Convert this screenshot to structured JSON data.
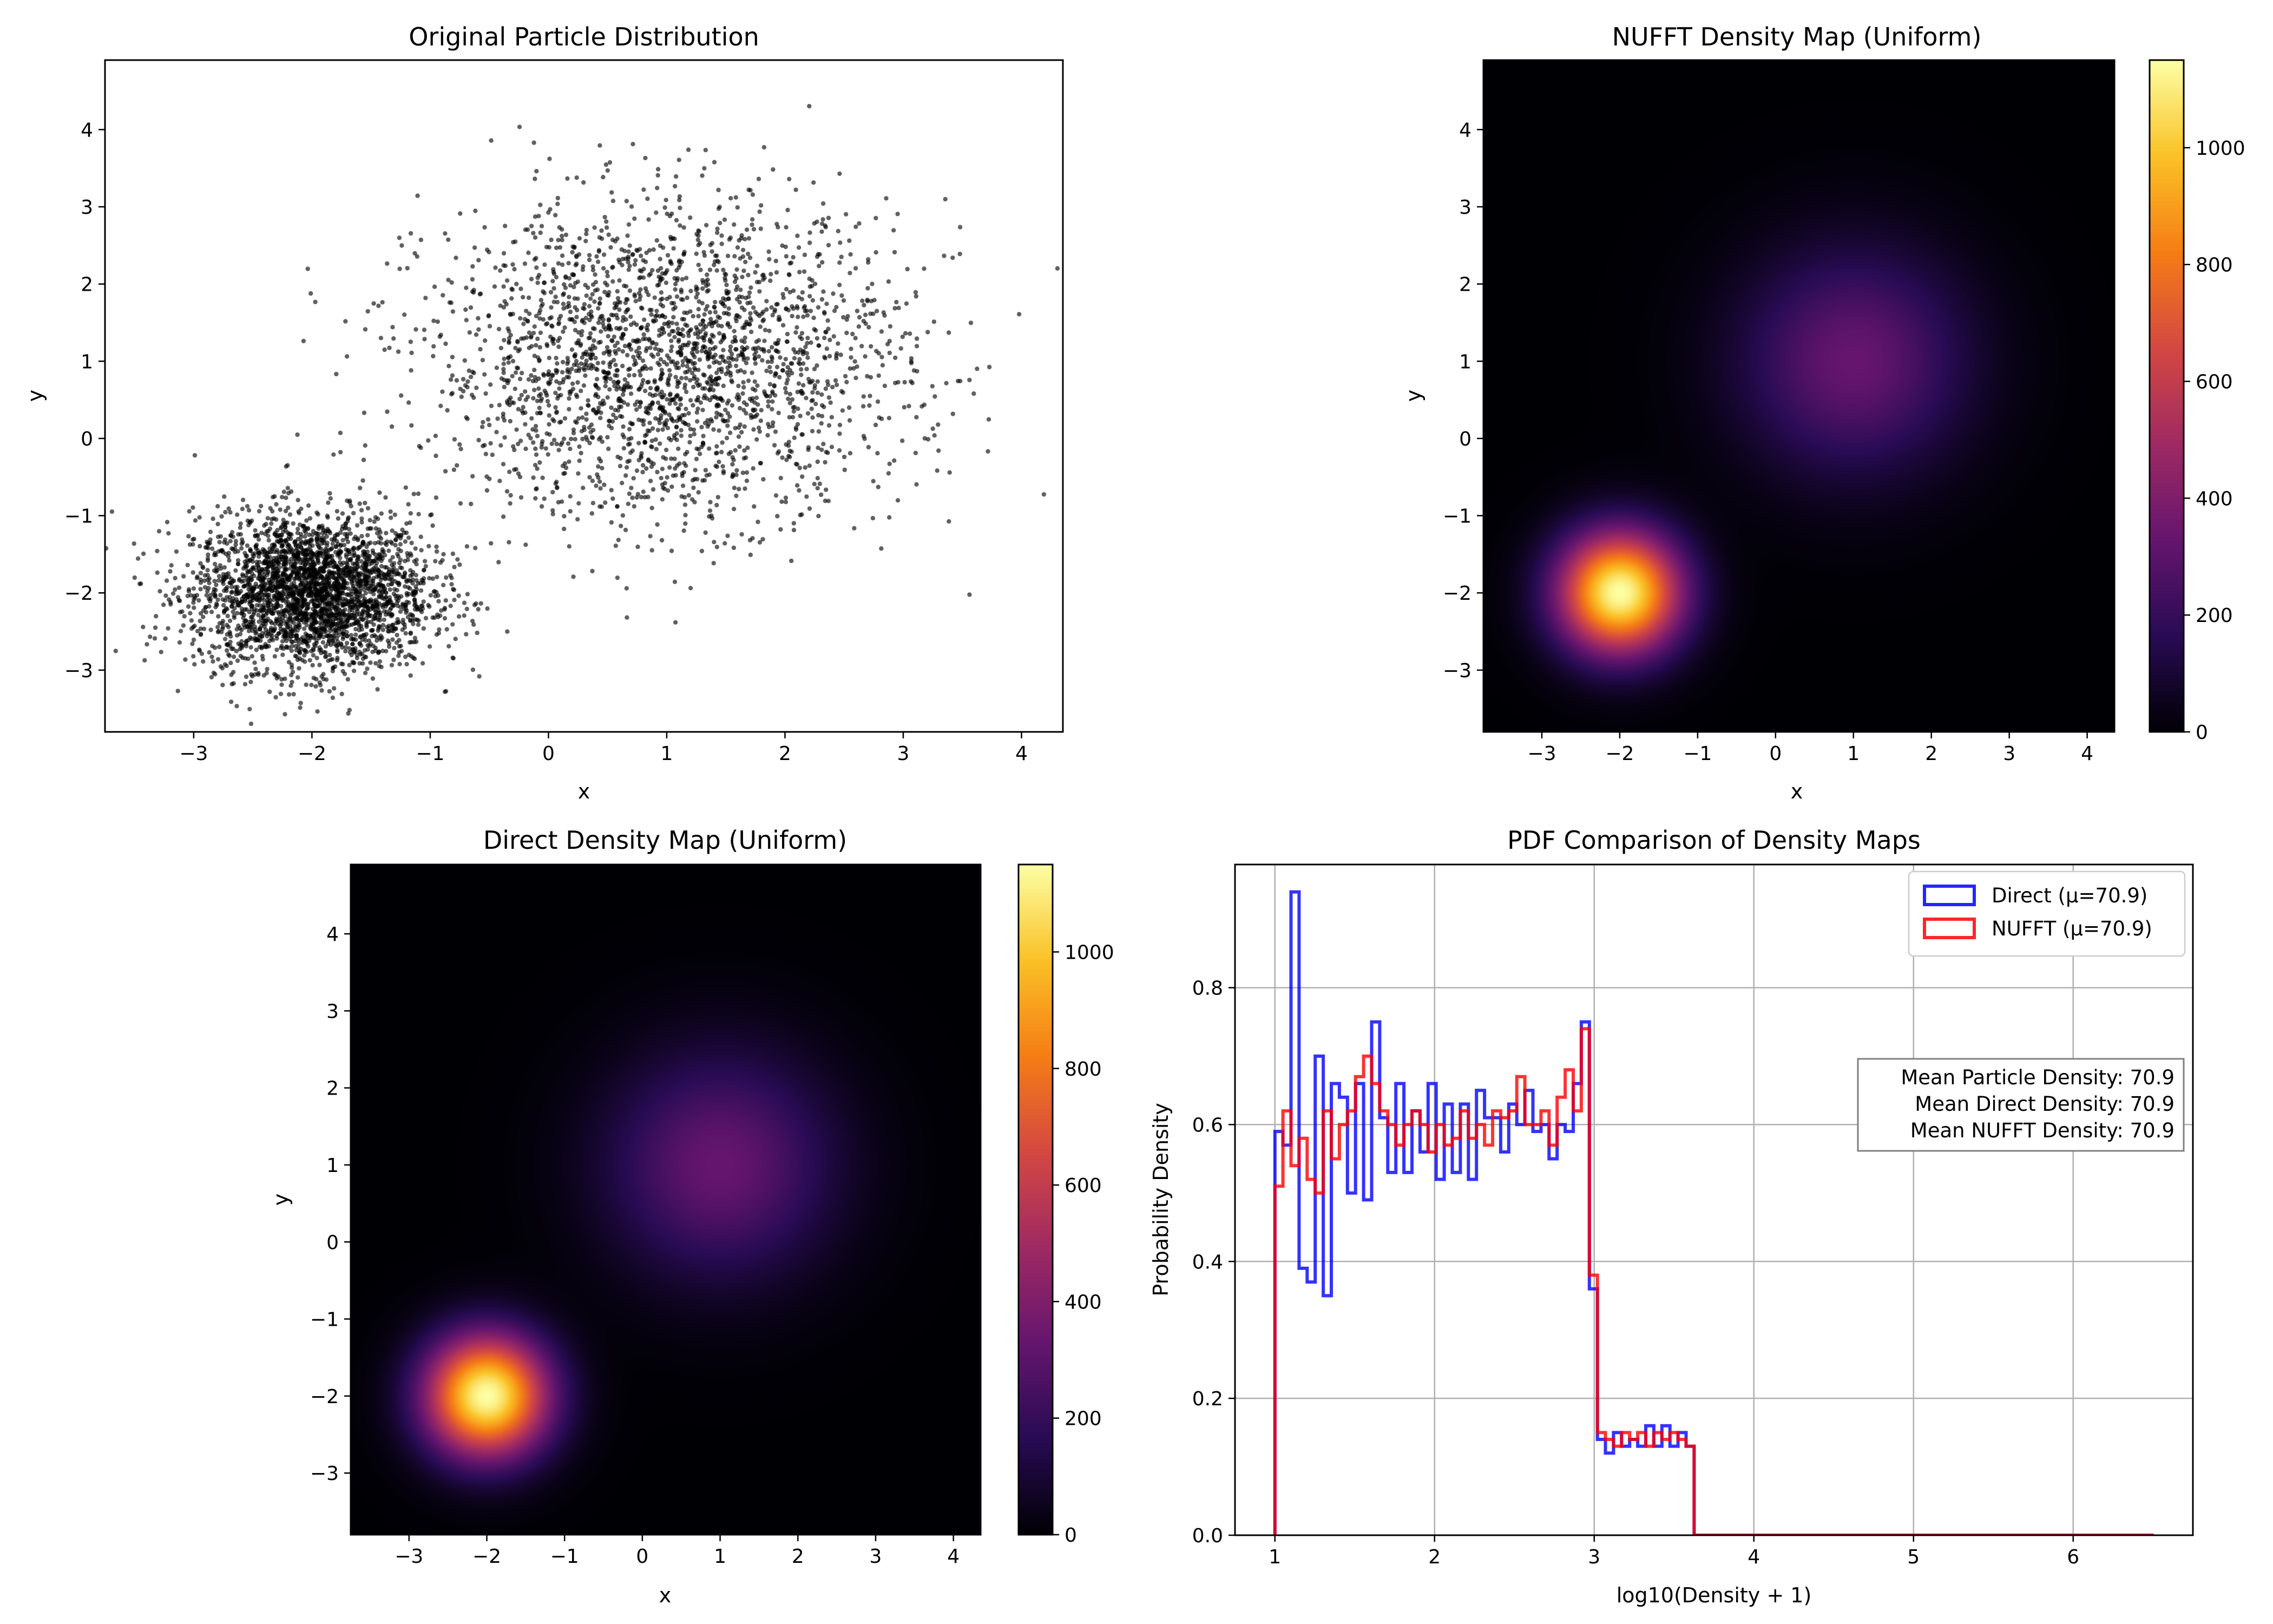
{
  "chart_data": [
    {
      "type": "scatter",
      "title": "Original Particle Distribution",
      "xlabel": "x",
      "ylabel": "y",
      "xlim": [
        -3.75,
        4.35
      ],
      "ylim": [
        -3.8,
        4.9
      ],
      "xticks": [
        -3,
        -2,
        -1,
        0,
        1,
        2,
        3,
        4
      ],
      "yticks": [
        -3,
        -2,
        -1,
        0,
        1,
        2,
        3,
        4
      ],
      "xtick_labels": [
        "−3",
        "−2",
        "−1",
        "0",
        "1",
        "2",
        "3",
        "4"
      ],
      "ytick_labels": [
        "−3",
        "−2",
        "−1",
        "0",
        "1",
        "2",
        "3",
        "4"
      ],
      "point_color": "#000000",
      "clusters": [
        {
          "center_x": -2.0,
          "center_y": -2.0,
          "std": 0.5,
          "count": 3000
        },
        {
          "center_x": 1.0,
          "center_y": 1.0,
          "std": 1.0,
          "count": 2500
        }
      ]
    },
    {
      "type": "heatmap",
      "title": "NUFFT Density Map (Uniform)",
      "xlabel": "x",
      "ylabel": "y",
      "xlim": [
        -3.75,
        4.35
      ],
      "ylim": [
        -3.8,
        4.9
      ],
      "xticks": [
        -3,
        -2,
        -1,
        0,
        1,
        2,
        3,
        4
      ],
      "yticks": [
        -3,
        -2,
        -1,
        0,
        1,
        2,
        3,
        4
      ],
      "xtick_labels": [
        "−3",
        "−2",
        "−1",
        "0",
        "1",
        "2",
        "3",
        "4"
      ],
      "ytick_labels": [
        "−3",
        "−2",
        "−1",
        "0",
        "1",
        "2",
        "3",
        "4"
      ],
      "colormap": "inferno",
      "colorbar": {
        "min": 0,
        "max": 1150,
        "ticks": [
          0,
          200,
          400,
          600,
          800,
          1000
        ],
        "tick_labels": [
          "0",
          "200",
          "400",
          "600",
          "800",
          "1000"
        ]
      },
      "blobs": [
        {
          "center_x": -2.0,
          "center_y": -2.0,
          "peak": 1150,
          "sigma": 0.55
        },
        {
          "center_x": 1.0,
          "center_y": 1.0,
          "peak": 330,
          "sigma": 1.0
        }
      ]
    },
    {
      "type": "heatmap",
      "title": "Direct Density Map (Uniform)",
      "xlabel": "x",
      "ylabel": "y",
      "xlim": [
        -3.75,
        4.35
      ],
      "ylim": [
        -3.8,
        4.9
      ],
      "xticks": [
        -3,
        -2,
        -1,
        0,
        1,
        2,
        3,
        4
      ],
      "yticks": [
        -3,
        -2,
        -1,
        0,
        1,
        2,
        3,
        4
      ],
      "xtick_labels": [
        "−3",
        "−2",
        "−1",
        "0",
        "1",
        "2",
        "3",
        "4"
      ],
      "ytick_labels": [
        "−3",
        "−2",
        "−1",
        "0",
        "1",
        "2",
        "3",
        "4"
      ],
      "colormap": "inferno",
      "colorbar": {
        "min": 0,
        "max": 1150,
        "ticks": [
          0,
          200,
          400,
          600,
          800,
          1000
        ],
        "tick_labels": [
          "0",
          "200",
          "400",
          "600",
          "800",
          "1000"
        ]
      },
      "blobs": [
        {
          "center_x": -2.0,
          "center_y": -2.0,
          "peak": 1150,
          "sigma": 0.55
        },
        {
          "center_x": 1.0,
          "center_y": 1.0,
          "peak": 330,
          "sigma": 1.0
        }
      ]
    },
    {
      "type": "line",
      "title": "PDF Comparison of Density Maps",
      "xlabel": "log10(Density + 1)",
      "ylabel": "Probability Density",
      "xlim": [
        0.75,
        6.75
      ],
      "ylim": [
        0,
        0.98
      ],
      "xticks": [
        1,
        2,
        3,
        4,
        5,
        6
      ],
      "yticks": [
        0.0,
        0.2,
        0.4,
        0.6,
        0.8
      ],
      "xtick_labels": [
        "1",
        "2",
        "3",
        "4",
        "5",
        "6"
      ],
      "ytick_labels": [
        "0.0",
        "0.2",
        "0.4",
        "0.6",
        "0.8"
      ],
      "grid": true,
      "legend_position": "top-right",
      "bin_start": 1.0,
      "bin_width": 0.0505,
      "series": [
        {
          "name": "Direct (μ=70.9)",
          "color": "#0000ff",
          "values": [
            0.59,
            0.57,
            0.94,
            0.39,
            0.37,
            0.7,
            0.35,
            0.66,
            0.64,
            0.5,
            0.66,
            0.49,
            0.75,
            0.61,
            0.53,
            0.66,
            0.53,
            0.62,
            0.56,
            0.66,
            0.52,
            0.63,
            0.53,
            0.63,
            0.52,
            0.65,
            0.61,
            0.61,
            0.56,
            0.63,
            0.6,
            0.65,
            0.59,
            0.6,
            0.55,
            0.6,
            0.59,
            0.66,
            0.75,
            0.36,
            0.14,
            0.12,
            0.15,
            0.13,
            0.14,
            0.13,
            0.16,
            0.13,
            0.16,
            0.13,
            0.15,
            0.13,
            0.0,
            0.0,
            0.0,
            0.0,
            0.0,
            0.0,
            0.0,
            0.0,
            0.0,
            0.0,
            0.0,
            0.0,
            0.0,
            0.0,
            0.0,
            0.0,
            0.0,
            0.0,
            0.0,
            0.0,
            0.0,
            0.0,
            0.0,
            0.0,
            0.0,
            0.0,
            0.0,
            0.0,
            0.0,
            0.0,
            0.0,
            0.0,
            0.0,
            0.0,
            0.0,
            0.0,
            0.0,
            0.0,
            0.0,
            0.0,
            0.0,
            0.0,
            0.0,
            0.0,
            0.0,
            0.0,
            0.0,
            0.0,
            0.0,
            0.0,
            0.0,
            0.0,
            0.0,
            0.0,
            0.0,
            0.0,
            0.0
          ]
        },
        {
          "name": "NUFFT (μ=70.9)",
          "color": "#ff0000",
          "values": [
            0.51,
            0.62,
            0.54,
            0.58,
            0.52,
            0.5,
            0.62,
            0.55,
            0.6,
            0.62,
            0.67,
            0.7,
            0.66,
            0.62,
            0.6,
            0.57,
            0.6,
            0.62,
            0.6,
            0.56,
            0.6,
            0.57,
            0.58,
            0.62,
            0.58,
            0.6,
            0.57,
            0.62,
            0.61,
            0.62,
            0.67,
            0.6,
            0.6,
            0.62,
            0.57,
            0.64,
            0.68,
            0.62,
            0.74,
            0.38,
            0.15,
            0.14,
            0.13,
            0.15,
            0.14,
            0.15,
            0.13,
            0.15,
            0.14,
            0.15,
            0.14,
            0.13,
            0.0,
            0.0,
            0.0,
            0.0,
            0.0,
            0.0,
            0.0,
            0.0,
            0.0,
            0.0,
            0.0,
            0.0,
            0.0,
            0.0,
            0.0,
            0.0,
            0.0,
            0.0,
            0.0,
            0.0,
            0.0,
            0.0,
            0.0,
            0.0,
            0.0,
            0.0,
            0.0,
            0.0,
            0.0,
            0.0,
            0.0,
            0.0,
            0.0,
            0.0,
            0.0,
            0.0,
            0.0,
            0.0,
            0.0,
            0.0,
            0.0,
            0.0,
            0.0,
            0.0,
            0.0,
            0.0,
            0.0,
            0.0,
            0.0,
            0.0,
            0.0,
            0.0,
            0.0,
            0.0,
            0.0,
            0.0,
            0.0
          ]
        }
      ],
      "annotation_lines": [
        "Mean Particle Density: 70.9",
        "Mean Direct Density: 70.9",
        "Mean NUFFT Density: 70.9"
      ]
    }
  ]
}
